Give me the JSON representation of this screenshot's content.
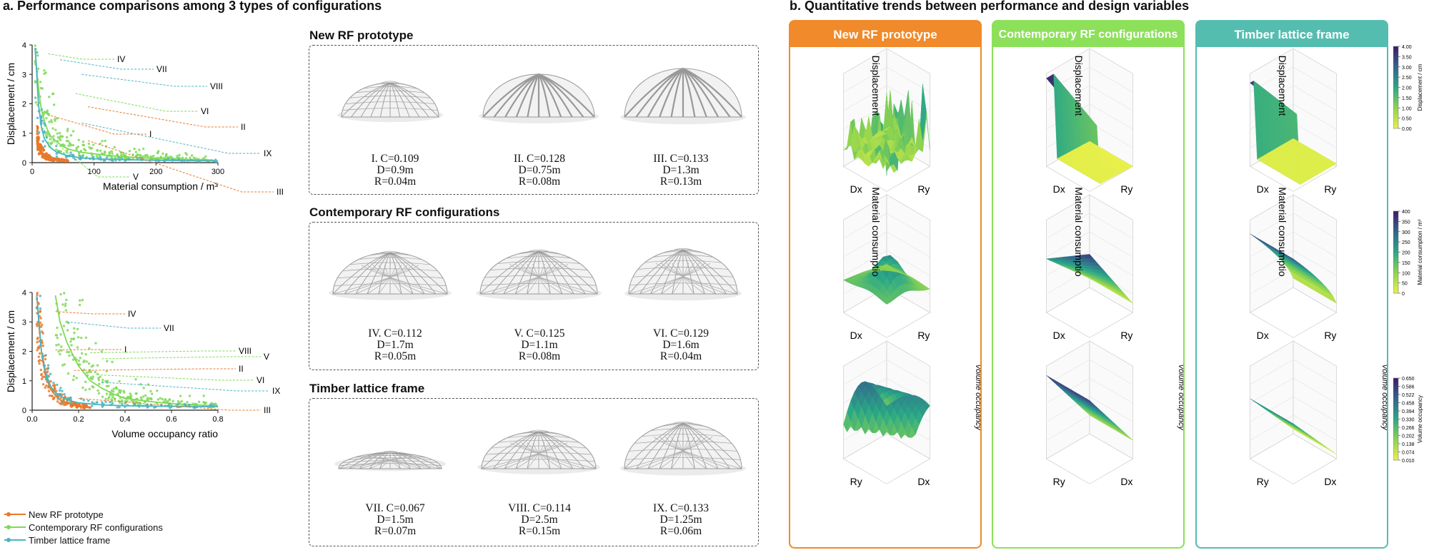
{
  "section_a": {
    "title": "a. Performance comparisons among 3 types of configurations"
  },
  "section_b": {
    "title": "b. Quantitative trends between performance and design variables"
  },
  "legend": [
    {
      "label": "New RF prototype",
      "color": "#e8782a"
    },
    {
      "label": "Contemporary RF configurations",
      "color": "#7ed957"
    },
    {
      "label": "Timber lattice frame",
      "color": "#4bb5c1"
    }
  ],
  "chart_data": [
    {
      "type": "scatter",
      "title": "",
      "xlabel": "Material consumption / m³",
      "ylabel": "Displacement / cm",
      "xlim": [
        0,
        300
      ],
      "ylim": [
        0,
        4
      ],
      "xticks": [
        0,
        100,
        200,
        300
      ],
      "yticks": [
        0,
        1,
        2,
        3,
        4
      ],
      "series": [
        {
          "name": "New RF prototype",
          "color": "#e8782a",
          "x": [
            8,
            10,
            12,
            15,
            18,
            20,
            22,
            25,
            28,
            30,
            35,
            40,
            45,
            50,
            55,
            60
          ],
          "y": [
            0.9,
            0.6,
            0.45,
            0.35,
            0.3,
            0.25,
            0.2,
            0.18,
            0.15,
            0.12,
            0.1,
            0.09,
            0.08,
            0.07,
            0.06,
            0.05
          ]
        },
        {
          "name": "Contemporary RF configurations",
          "color": "#7ed957",
          "x": [
            5,
            8,
            10,
            12,
            15,
            20,
            25,
            30,
            40,
            50,
            60,
            80,
            100,
            120,
            150,
            180,
            200,
            250,
            290
          ],
          "y": [
            3.8,
            3.0,
            2.6,
            2.2,
            1.8,
            1.4,
            1.1,
            0.9,
            0.7,
            0.55,
            0.45,
            0.35,
            0.3,
            0.25,
            0.2,
            0.16,
            0.14,
            0.11,
            0.09
          ]
        },
        {
          "name": "Timber lattice frame",
          "color": "#4bb5c1",
          "x": [
            5,
            8,
            10,
            15,
            20,
            30,
            40,
            60,
            80,
            100,
            150,
            200,
            250,
            300
          ],
          "y": [
            3.9,
            2.8,
            2.0,
            1.2,
            0.8,
            0.5,
            0.35,
            0.22,
            0.16,
            0.13,
            0.1,
            0.08,
            0.07,
            0.06
          ]
        }
      ],
      "annotations": [
        {
          "label": "IV",
          "x": 26,
          "y": 3.7,
          "color": "#7ed957"
        },
        {
          "label": "VII",
          "x": 45,
          "y": 3.5,
          "color": "#4bb5c1"
        },
        {
          "label": "VIII",
          "x": 80,
          "y": 3.0,
          "color": "#4bb5c1"
        },
        {
          "label": "VI",
          "x": 70,
          "y": 2.35,
          "color": "#7ed957"
        },
        {
          "label": "II",
          "x": 90,
          "y": 1.9,
          "color": "#e8782a"
        },
        {
          "label": "I",
          "x": 30,
          "y": 1.6,
          "color": "#e8782a"
        },
        {
          "label": "IX",
          "x": 80,
          "y": 1.35,
          "color": "#4bb5c1"
        },
        {
          "label": "V",
          "x": 30,
          "y": 0.8,
          "color": "#7ed957"
        },
        {
          "label": "III",
          "x": 90,
          "y": 0.75,
          "color": "#e8782a"
        }
      ]
    },
    {
      "type": "scatter",
      "title": "",
      "xlabel": "Volume  occupancy ratio",
      "ylabel": "Displacement / cm",
      "xlim": [
        0,
        0.8
      ],
      "ylim": [
        0,
        4
      ],
      "xticks": [
        0.0,
        0.2,
        0.4,
        0.6,
        0.8
      ],
      "yticks": [
        0,
        1,
        2,
        3,
        4
      ],
      "series": [
        {
          "name": "New RF prototype",
          "color": "#e8782a",
          "x": [
            0.02,
            0.03,
            0.04,
            0.05,
            0.06,
            0.08,
            0.1,
            0.12,
            0.15,
            0.18,
            0.2,
            0.25
          ],
          "y": [
            3.9,
            2.8,
            2.0,
            1.5,
            1.1,
            0.7,
            0.5,
            0.35,
            0.25,
            0.18,
            0.15,
            0.1
          ]
        },
        {
          "name": "Contemporary RF configurations",
          "color": "#7ed957",
          "x": [
            0.1,
            0.12,
            0.15,
            0.18,
            0.2,
            0.25,
            0.3,
            0.35,
            0.4,
            0.5,
            0.6,
            0.7,
            0.8
          ],
          "y": [
            3.9,
            3.0,
            2.3,
            1.8,
            1.5,
            1.0,
            0.75,
            0.55,
            0.4,
            0.3,
            0.22,
            0.18,
            0.15
          ]
        },
        {
          "name": "Timber lattice frame",
          "color": "#4bb5c1",
          "x": [
            0.02,
            0.04,
            0.06,
            0.08,
            0.1,
            0.15,
            0.2,
            0.3,
            0.4,
            0.6,
            0.8
          ],
          "y": [
            3.9,
            2.0,
            1.2,
            0.8,
            0.6,
            0.35,
            0.25,
            0.18,
            0.15,
            0.13,
            0.12
          ]
        }
      ],
      "annotations": [
        {
          "label": "IV",
          "x": 0.1,
          "y": 3.35,
          "color": "#e8782a"
        },
        {
          "label": "VII",
          "x": 0.15,
          "y": 3.0,
          "color": "#4bb5c1"
        },
        {
          "label": "I",
          "x": 0.1,
          "y": 2.05,
          "color": "#e8782a"
        },
        {
          "label": "VIII",
          "x": 0.25,
          "y": 1.95,
          "color": "#7ed957"
        },
        {
          "label": "V",
          "x": 0.3,
          "y": 1.75,
          "color": "#7ed957"
        },
        {
          "label": "II",
          "x": 0.18,
          "y": 1.35,
          "color": "#e8782a"
        },
        {
          "label": "VI",
          "x": 0.28,
          "y": 1.2,
          "color": "#7ed957"
        },
        {
          "label": "IX",
          "x": 0.3,
          "y": 0.95,
          "color": "#4bb5c1"
        },
        {
          "label": "III",
          "x": 0.2,
          "y": 0.4,
          "color": "#e8782a"
        }
      ]
    }
  ],
  "prototypes": [
    {
      "title": "New RF prototype",
      "items": [
        {
          "label": "I. C=0.109",
          "d": "D=0.9m",
          "r": "R=0.04m"
        },
        {
          "label": "II. C=0.128",
          "d": "D=0.75m",
          "r": "R=0.08m"
        },
        {
          "label": "III. C=0.133",
          "d": "D=1.3m",
          "r": "R=0.13m"
        }
      ]
    },
    {
      "title": "Contemporary RF configurations",
      "items": [
        {
          "label": "IV. C=0.112",
          "d": "D=1.7m",
          "r": "R=0.05m"
        },
        {
          "label": "V. C=0.125",
          "d": "D=1.1m",
          "r": "R=0.08m"
        },
        {
          "label": "VI. C=0.129",
          "d": "D=1.6m",
          "r": "R=0.04m"
        }
      ]
    },
    {
      "title": "Timber lattice frame",
      "items": [
        {
          "label": "VII. C=0.067",
          "d": "D=1.5m",
          "r": "R=0.07m"
        },
        {
          "label": "VIII. C=0.114",
          "d": "D=2.5m",
          "r": "R=0.15m"
        },
        {
          "label": "IX. C=0.133",
          "d": "D=1.25m",
          "r": "R=0.06m"
        }
      ]
    }
  ],
  "panels": [
    {
      "title": "New RF prototype",
      "color": "#f08a2a"
    },
    {
      "title": "Contemporary RF configurations",
      "color": "#8de05a"
    },
    {
      "title": "Timber lattice frame",
      "color": "#55bdb0"
    }
  ],
  "surface_labels": {
    "displacement": "Displacement",
    "material": "Material consumptio",
    "volume": "Volume occupancy",
    "dx": "Dx",
    "ry": "Ry"
  },
  "colorbars": [
    {
      "label": "Displacement / cm",
      "ticks": [
        "4.00",
        "3.50",
        "3.00",
        "2.50",
        "2.00",
        "1.50",
        "1.00",
        "0.50",
        "0.00"
      ]
    },
    {
      "label": "Material consumption / m³",
      "ticks": [
        "400",
        "350",
        "300",
        "250",
        "200",
        "150",
        "100",
        "50",
        "0"
      ]
    },
    {
      "label": "Volume occupancy",
      "ticks": [
        "0.650",
        "0.586",
        "0.522",
        "0.458",
        "0.394",
        "0.330",
        "0.266",
        "0.202",
        "0.138",
        "0.074",
        "0.010"
      ]
    }
  ]
}
